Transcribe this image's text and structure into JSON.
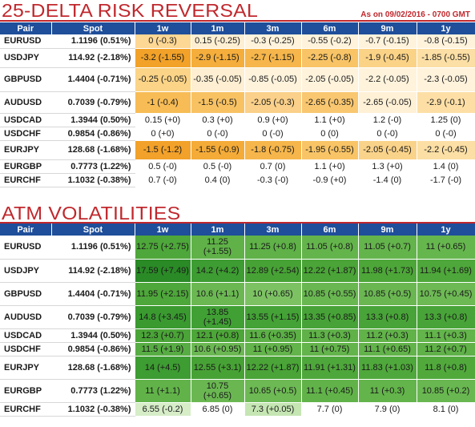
{
  "risk_reversal": {
    "title": "25-DELTA RISK REVERSAL",
    "as_of": "As on 09/02/2016 - 0700 GMT",
    "headers": [
      "Pair",
      "Spot",
      "1w",
      "1m",
      "3m",
      "6m",
      "9m",
      "1y"
    ],
    "rows": [
      {
        "pair": "EURUSD",
        "spot": "1.1196 (0.51%)",
        "cells": [
          "0 (-0.3)",
          "0.15 (-0.25)",
          "-0.3 (-0.25)",
          "-0.55 (-0.2)",
          "-0.7 (-0.15)",
          "-0.8 (-0.15)"
        ],
        "colors": [
          "#fdd794",
          "#feefd2",
          "#fff3dc",
          "#fff3dc",
          "#fff3dc",
          "#fff3dc"
        ]
      },
      {
        "pair": "USDJPY",
        "spot": "114.92 (-2.18%)",
        "cells": [
          "-3.2 (-1.55)",
          "-2.9 (-1.15)",
          "-2.7 (-1.15)",
          "-2.25 (-0.8)",
          "-1.9 (-0.45)",
          "-1.85 (-0.55)"
        ],
        "colors": [
          "#f2a228",
          "#f5ae3c",
          "#f6b64b",
          "#f8c466",
          "#fbd387",
          "#fcdfa5"
        ]
      },
      {
        "pair": "GBPUSD",
        "spot": "1.4404 (-0.71%)",
        "cells": [
          "-0.25 (-0.05)",
          "-0.35 (-0.05)",
          "-0.85 (-0.05)",
          "-2.05 (-0.05)",
          "-2.2 (-0.05)",
          "-2.3 (-0.05)"
        ],
        "colors": [
          "#fbd487",
          "#feefd2",
          "#fff3dc",
          "#fff3dc",
          "#fff3dc",
          "#fff3dc"
        ]
      },
      {
        "pair": "AUDUSD",
        "spot": "0.7039 (-0.79%)",
        "cells": [
          "-1 (-0.4)",
          "-1.5 (-0.5)",
          "-2.05 (-0.3)",
          "-2.65 (-0.35)",
          "-2.65 (-0.05)",
          "-2.9 (-0.1)"
        ],
        "colors": [
          "#f7bc55",
          "#f8c263",
          "#fad08a",
          "#f9c770",
          "#fff1d6",
          "#fddfa6"
        ]
      },
      {
        "pair": "USDCAD",
        "spot": "1.3944 (0.50%)",
        "cells": [
          "0.15 (+0)",
          "0.3 (+0)",
          "0.9 (+0)",
          "1.1 (+0)",
          "1.2 (-0)",
          "1.25 (0)"
        ],
        "colors": [
          "#ffffff",
          "#ffffff",
          "#ffffff",
          "#ffffff",
          "#ffffff",
          "#ffffff"
        ]
      },
      {
        "pair": "USDCHF",
        "spot": "0.9854 (-0.86%)",
        "cells": [
          "0 (+0)",
          "0 (-0)",
          "0 (-0)",
          "0 (0)",
          "0 (-0)",
          "0 (-0)"
        ],
        "colors": [
          "#ffffff",
          "#ffffff",
          "#ffffff",
          "#ffffff",
          "#ffffff",
          "#ffffff"
        ]
      },
      {
        "pair": "EURJPY",
        "spot": "128.68 (-1.68%)",
        "cells": [
          "-1.5 (-1.2)",
          "-1.55 (-0.9)",
          "-1.8 (-0.75)",
          "-1.95 (-0.55)",
          "-2.05 (-0.45)",
          "-2.2 (-0.45)"
        ],
        "colors": [
          "#f2a12a",
          "#f4ab38",
          "#f6b64b",
          "#f8c466",
          "#fad38a",
          "#fcdfa5"
        ]
      },
      {
        "pair": "EURGBP",
        "spot": "0.7773 (1.22%)",
        "cells": [
          "0.5 (-0)",
          "0.5 (-0)",
          "0.7 (0)",
          "1.1 (+0)",
          "1.3 (+0)",
          "1.4 (0)"
        ],
        "colors": [
          "#ffffff",
          "#ffffff",
          "#ffffff",
          "#ffffff",
          "#ffffff",
          "#ffffff"
        ]
      },
      {
        "pair": "EURCHF",
        "spot": "1.1032 (-0.38%)",
        "cells": [
          "0.7 (-0)",
          "0.4 (0)",
          "-0.3 (-0)",
          "-0.9 (+0)",
          "-1.4 (0)",
          "-1.7 (-0)"
        ],
        "colors": [
          "#ffffff",
          "#ffffff",
          "#ffffff",
          "#ffffff",
          "#ffffff",
          "#ffffff"
        ]
      }
    ]
  },
  "atm_vol": {
    "title": "ATM VOLATILITIES",
    "headers": [
      "Pair",
      "Spot",
      "1w",
      "1m",
      "3m",
      "6m",
      "9m",
      "1y"
    ],
    "rows": [
      {
        "pair": "EURUSD",
        "spot": "1.1196 (0.51%)",
        "cells": [
          "12.75 (+2.75)",
          "11.25 (+1.55)",
          "11.25 (+0.8)",
          "11.05 (+0.8)",
          "11.05 (+0.7)",
          "11 (+0.65)"
        ],
        "colors": [
          "#4ea73a",
          "#5fb148",
          "#5fb148",
          "#64b44c",
          "#64b44c",
          "#66b64e"
        ]
      },
      {
        "pair": "USDJPY",
        "spot": "114.92 (-2.18%)",
        "cells": [
          "17.59 (+7.49)",
          "14.2 (+4.2)",
          "12.89 (+2.54)",
          "12.22 (+1.87)",
          "11.98 (+1.73)",
          "11.94 (+1.69)"
        ],
        "colors": [
          "#2a8a26",
          "#3d9c32",
          "#47a235",
          "#4aa437",
          "#4da638",
          "#4ea73a"
        ]
      },
      {
        "pair": "GBPUSD",
        "spot": "1.4404 (-0.71%)",
        "cells": [
          "11.95 (+2.15)",
          "10.6 (+1.1)",
          "10 (+0.65)",
          "10.85 (+0.55)",
          "10.85 (+0.5)",
          "10.75 (+0.45)"
        ],
        "colors": [
          "#4ea73a",
          "#6bb853",
          "#7cc263",
          "#69b751",
          "#6ab752",
          "#6db954"
        ]
      },
      {
        "pair": "AUDUSD",
        "spot": "0.7039 (-0.79%)",
        "cells": [
          "14.8 (+3.45)",
          "13.85 (+1.45)",
          "13.55 (+1.15)",
          "13.35 (+0.85)",
          "13.3 (+0.8)",
          "13.3 (+0.8)"
        ],
        "colors": [
          "#3a9a30",
          "#40a034",
          "#44a236",
          "#47a337",
          "#48a438",
          "#48a438"
        ]
      },
      {
        "pair": "USDCAD",
        "spot": "1.3944 (0.50%)",
        "cells": [
          "12.3 (+0.7)",
          "12.1 (+0.8)",
          "11.6 (+0.35)",
          "11.3 (+0.3)",
          "11.2 (+0.3)",
          "11.1 (+0.3)"
        ],
        "colors": [
          "#4aa437",
          "#4da638",
          "#5cb046",
          "#5fb148",
          "#61b349",
          "#63b44b"
        ]
      },
      {
        "pair": "USDCHF",
        "spot": "0.9854 (-0.86%)",
        "cells": [
          "11.5 (+1.9)",
          "10.6 (+0.95)",
          "11 (+0.95)",
          "11 (+0.75)",
          "11.1 (+0.65)",
          "11.2 (+0.7)"
        ],
        "colors": [
          "#57ad43",
          "#6bb853",
          "#63b44b",
          "#63b44b",
          "#62b34a",
          "#5fb148"
        ]
      },
      {
        "pair": "EURJPY",
        "spot": "128.68 (-1.68%)",
        "cells": [
          "14 (+4.5)",
          "12.55 (+3.1)",
          "12.22 (+1.87)",
          "11.91 (+1.31)",
          "11.83 (+1.03)",
          "11.8 (+0.8)"
        ],
        "colors": [
          "#3d9c32",
          "#47a235",
          "#4aa437",
          "#4ea73a",
          "#4fa83b",
          "#51a93c"
        ]
      },
      {
        "pair": "EURGBP",
        "spot": "0.7773 (1.22%)",
        "cells": [
          "11 (+1.1)",
          "10.75 (+0.65)",
          "10.65 (+0.5)",
          "11.1 (+0.45)",
          "11 (+0.3)",
          "10.85 (+0.2)"
        ],
        "colors": [
          "#61b349",
          "#6ab752",
          "#6db954",
          "#61b349",
          "#63b44b",
          "#69b751"
        ]
      },
      {
        "pair": "EURCHF",
        "spot": "1.1032 (-0.38%)",
        "cells": [
          "6.55 (-0.2)",
          "6.85 (0)",
          "7.3 (+0.05)",
          "7.7 (0)",
          "7.9 (0)",
          "8.1 (0)"
        ],
        "colors": [
          "#d6edc8",
          "#ffffff",
          "#c5e6b3",
          "#ffffff",
          "#ffffff",
          "#ffffff"
        ]
      }
    ]
  }
}
